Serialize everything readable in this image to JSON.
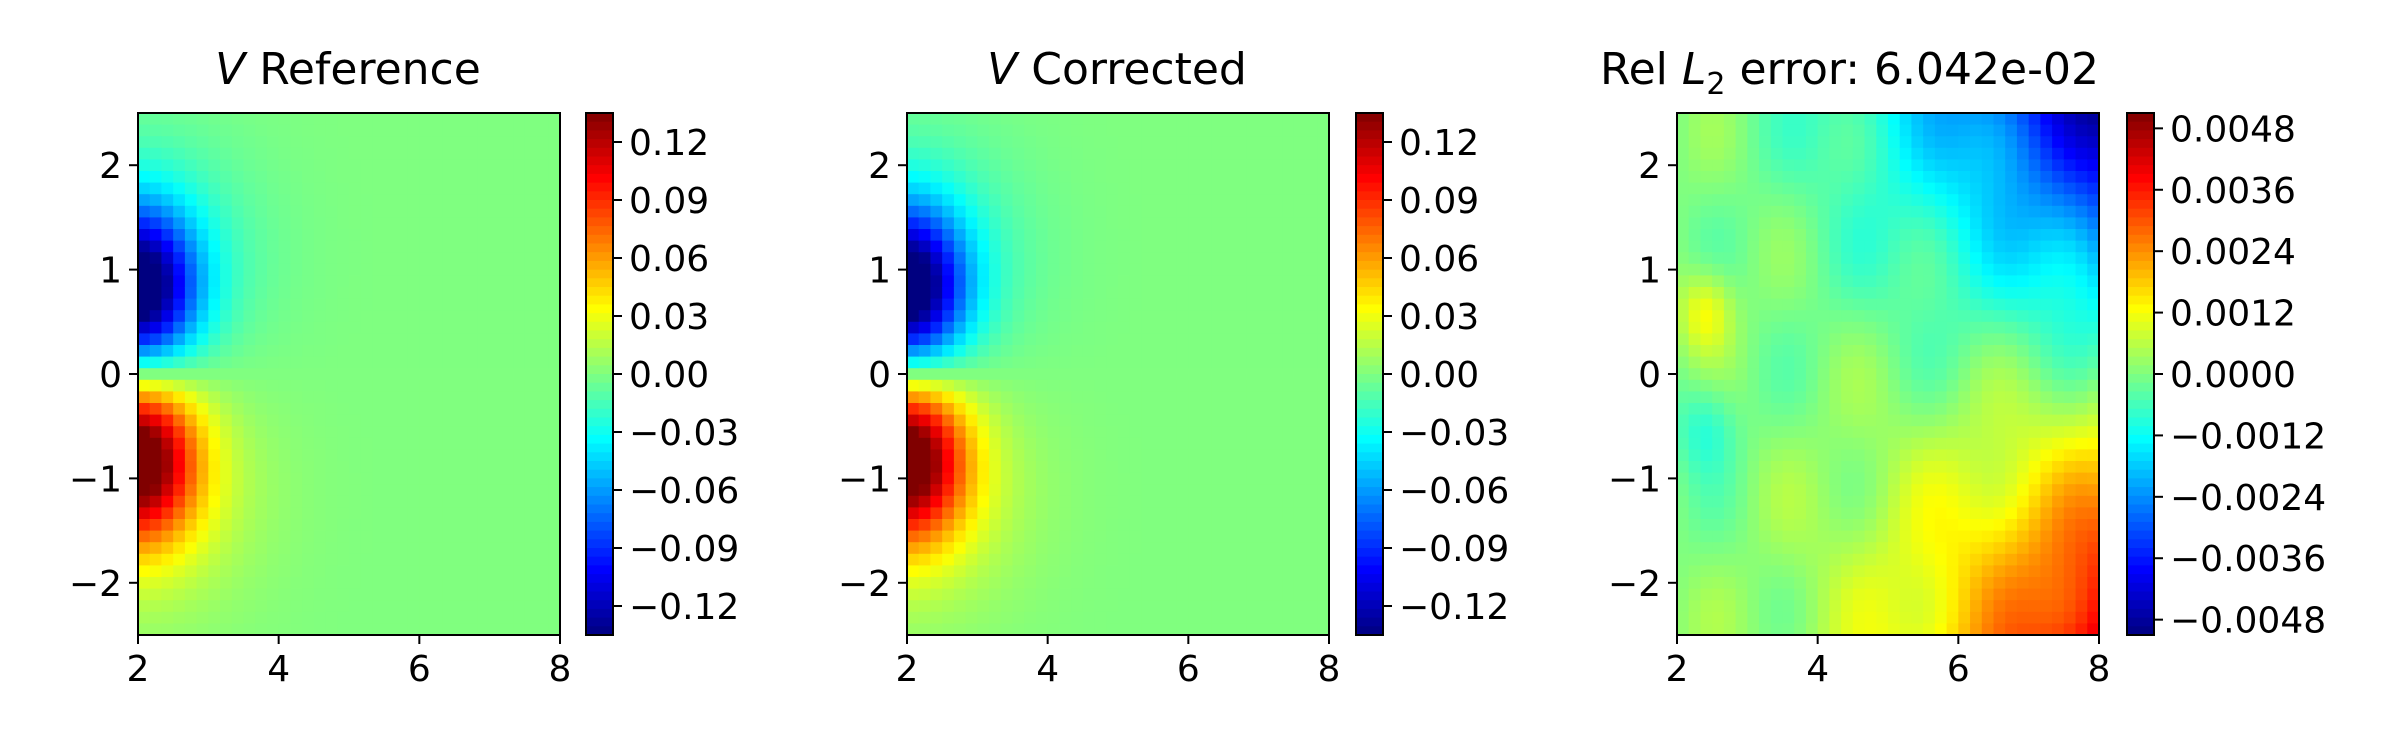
{
  "chart_data": [
    {
      "type": "heatmap",
      "title": "V Reference",
      "title_var": "V",
      "title_text": "Reference",
      "xlim": [
        2,
        8
      ],
      "ylim": [
        -2.5,
        2.5
      ],
      "xticks": [
        "2",
        "4",
        "6",
        "8"
      ],
      "yticks": [
        "2",
        "1",
        "0",
        "−1",
        "−2"
      ],
      "colormap": "jet",
      "colorbar_range": [
        -0.135,
        0.135
      ],
      "colorbar_ticks": [
        "0.12",
        "0.09",
        "0.06",
        "0.03",
        "0.00",
        "−0.03",
        "−0.06",
        "−0.09",
        "−0.12"
      ],
      "field": "dipole: negative minimum near (2, 0.8), positive maximum near (2, -0.8), ~0 elsewhere"
    },
    {
      "type": "heatmap",
      "title": "V Corrected",
      "title_var": "V",
      "title_text": "Corrected",
      "xlim": [
        2,
        8
      ],
      "ylim": [
        -2.5,
        2.5
      ],
      "xticks": [
        "2",
        "4",
        "6",
        "8"
      ],
      "yticks": [
        "2",
        "1",
        "0",
        "−1",
        "−2"
      ],
      "colormap": "jet",
      "colorbar_range": [
        -0.135,
        0.135
      ],
      "colorbar_ticks": [
        "0.12",
        "0.09",
        "0.06",
        "0.03",
        "0.00",
        "−0.03",
        "−0.06",
        "−0.09",
        "−0.12"
      ],
      "field": "dipole: negative minimum near (2, 0.8), positive maximum near (2, -0.8), ~0 elsewhere"
    },
    {
      "type": "heatmap",
      "title": "Rel L2 error: 6.042e-02",
      "title_prefix": "Rel ",
      "title_var": "L",
      "title_sub": "2",
      "title_suffix": " error: 6.042e-02",
      "xlim": [
        2,
        8
      ],
      "ylim": [
        -2.5,
        2.5
      ],
      "xticks": [
        "2",
        "4",
        "6",
        "8"
      ],
      "yticks": [
        "2",
        "1",
        "0",
        "−1",
        "−2"
      ],
      "colormap": "jet",
      "colorbar_range": [
        -0.0051,
        0.0051
      ],
      "colorbar_ticks": [
        "0.0048",
        "0.0036",
        "0.0024",
        "0.0012",
        "0.0000",
        "−0.0012",
        "−0.0024",
        "−0.0036",
        "−0.0048"
      ],
      "field": "error: minimum ~-0.0048 at top-right (8, 2.5), maximum ~0.0048 at bottom-right (8, -2.5), near 0 in the middle"
    }
  ]
}
